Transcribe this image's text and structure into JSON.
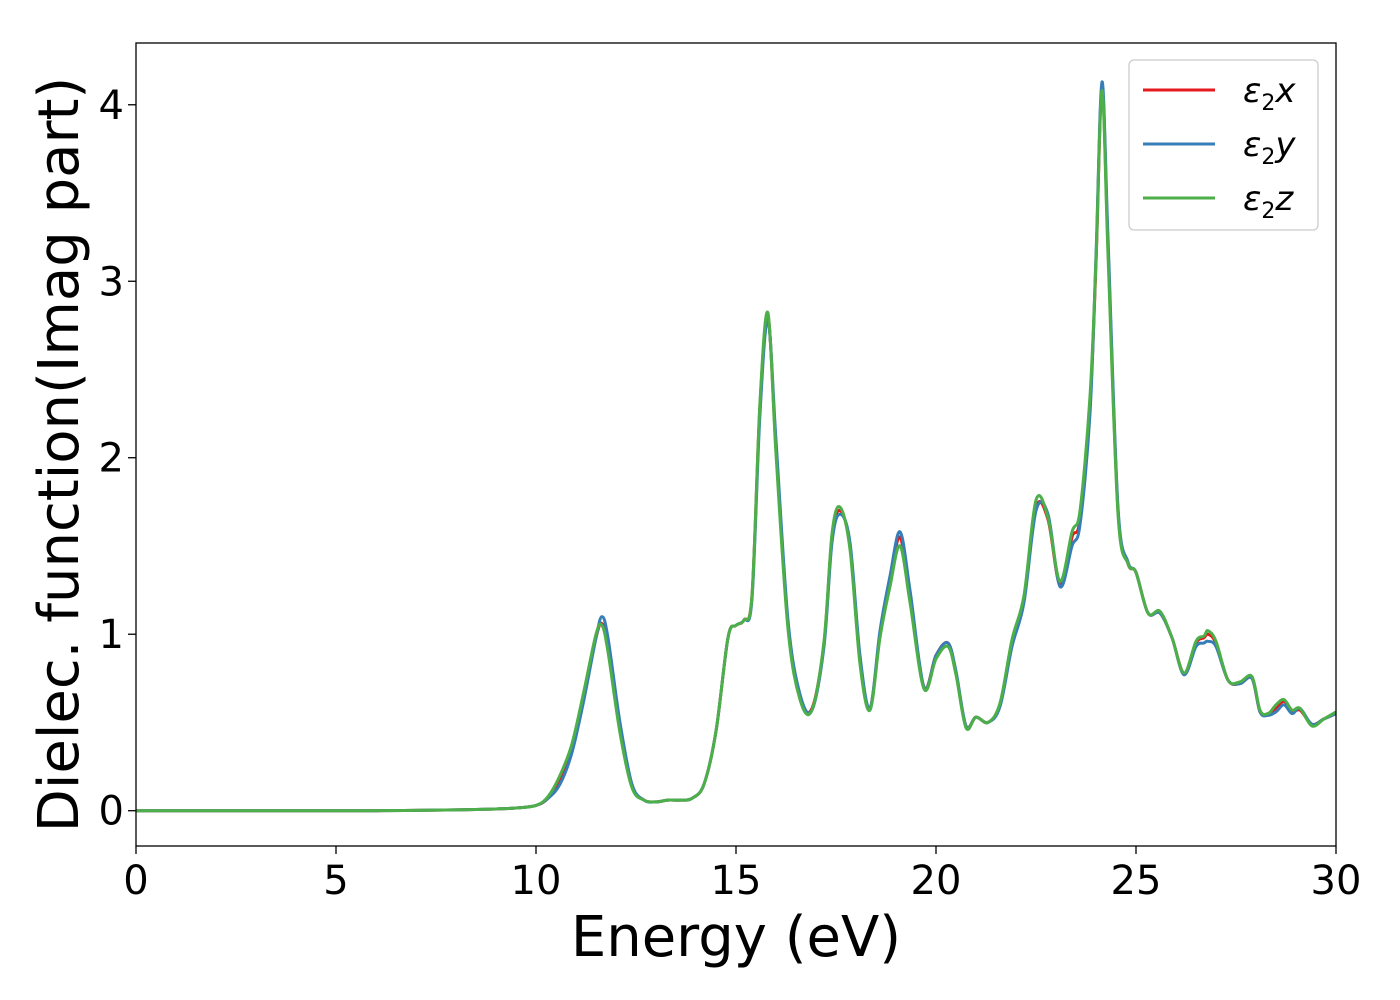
{
  "chart_data": {
    "type": "line",
    "xlabel": "Energy (eV)",
    "ylabel": "Dielec. function(Imag part)",
    "xlim": [
      0,
      30
    ],
    "ylim": [
      -0.2,
      4.35
    ],
    "xticks": [
      0,
      5,
      10,
      15,
      20,
      25,
      30
    ],
    "yticks": [
      0,
      1,
      2,
      3,
      4
    ],
    "xtick_labels": [
      "0",
      "5",
      "10",
      "15",
      "20",
      "25",
      "30"
    ],
    "ytick_labels": [
      "0",
      "1",
      "2",
      "3",
      "4"
    ],
    "grid": false,
    "legend_position": "top-right",
    "series": [
      {
        "name": "ε2x",
        "base": "ε",
        "sub": "2",
        "suffix": "x",
        "color": "#e41a1c",
        "x": [
          0,
          2,
          4,
          6,
          8,
          9,
          9.5,
          10,
          10.3,
          10.6,
          10.9,
          11.2,
          11.5,
          11.65,
          11.8,
          12.1,
          12.4,
          12.7,
          13,
          13.3,
          13.6,
          13.9,
          14.2,
          14.5,
          14.8,
          15,
          15.2,
          15.4,
          15.6,
          15.8,
          16,
          16.3,
          16.6,
          16.9,
          17.2,
          17.4,
          17.6,
          17.85,
          18.1,
          18.35,
          18.6,
          18.85,
          19.1,
          19.35,
          19.7,
          20,
          20.3,
          20.5,
          20.75,
          21,
          21.3,
          21.6,
          21.9,
          22.2,
          22.5,
          22.8,
          23.1,
          23.4,
          23.6,
          23.85,
          24,
          24.15,
          24.3,
          24.55,
          24.8,
          25,
          25.3,
          25.6,
          25.9,
          26.2,
          26.5,
          26.7,
          26.8,
          27,
          27.3,
          27.6,
          27.9,
          28.1,
          28.3,
          28.5,
          28.7,
          28.9,
          29.1,
          29.4,
          29.7,
          30
        ],
        "y": [
          0,
          0,
          0,
          0,
          0.005,
          0.01,
          0.015,
          0.03,
          0.07,
          0.17,
          0.35,
          0.65,
          0.98,
          1.06,
          0.92,
          0.45,
          0.14,
          0.06,
          0.05,
          0.06,
          0.06,
          0.07,
          0.15,
          0.45,
          0.98,
          1.05,
          1.08,
          1.22,
          2.3,
          2.8,
          2.05,
          1.05,
          0.64,
          0.58,
          0.95,
          1.55,
          1.7,
          1.5,
          0.85,
          0.58,
          1.0,
          1.3,
          1.55,
          1.2,
          0.7,
          0.88,
          0.95,
          0.78,
          0.48,
          0.53,
          0.5,
          0.6,
          0.95,
          1.2,
          1.72,
          1.65,
          1.28,
          1.55,
          1.65,
          2.3,
          3.1,
          4.1,
          3.2,
          1.7,
          1.4,
          1.35,
          1.12,
          1.12,
          0.98,
          0.78,
          0.95,
          0.98,
          1.0,
          0.95,
          0.74,
          0.72,
          0.75,
          0.56,
          0.55,
          0.58,
          0.62,
          0.56,
          0.57,
          0.49,
          0.52,
          0.55
        ]
      },
      {
        "name": "ε2y",
        "base": "ε",
        "sub": "2",
        "suffix": "y",
        "color": "#377eb8",
        "x": [
          0,
          2,
          4,
          6,
          8,
          9,
          9.5,
          10,
          10.3,
          10.6,
          10.9,
          11.2,
          11.5,
          11.65,
          11.8,
          12.1,
          12.4,
          12.7,
          13,
          13.3,
          13.6,
          13.9,
          14.2,
          14.5,
          14.8,
          15,
          15.2,
          15.4,
          15.6,
          15.8,
          16,
          16.3,
          16.6,
          16.9,
          17.2,
          17.4,
          17.6,
          17.85,
          18.1,
          18.35,
          18.6,
          18.85,
          19.1,
          19.35,
          19.7,
          20,
          20.3,
          20.5,
          20.75,
          21,
          21.3,
          21.6,
          21.9,
          22.2,
          22.5,
          22.8,
          23.1,
          23.4,
          23.6,
          23.85,
          24,
          24.15,
          24.3,
          24.55,
          24.8,
          25,
          25.3,
          25.6,
          25.9,
          26.2,
          26.5,
          26.7,
          26.8,
          27,
          27.3,
          27.6,
          27.9,
          28.1,
          28.3,
          28.5,
          28.7,
          28.9,
          29.1,
          29.4,
          29.7,
          30
        ],
        "y": [
          0,
          0,
          0,
          0,
          0.005,
          0.01,
          0.015,
          0.03,
          0.07,
          0.15,
          0.33,
          0.63,
          0.98,
          1.1,
          0.98,
          0.5,
          0.15,
          0.06,
          0.05,
          0.06,
          0.06,
          0.07,
          0.15,
          0.45,
          0.98,
          1.05,
          1.08,
          1.2,
          2.25,
          2.78,
          2.1,
          1.08,
          0.66,
          0.57,
          0.93,
          1.52,
          1.68,
          1.52,
          0.88,
          0.58,
          1.02,
          1.33,
          1.58,
          1.25,
          0.7,
          0.88,
          0.95,
          0.79,
          0.48,
          0.53,
          0.5,
          0.59,
          0.93,
          1.18,
          1.7,
          1.68,
          1.27,
          1.5,
          1.62,
          2.25,
          3.15,
          4.13,
          3.25,
          1.72,
          1.41,
          1.35,
          1.12,
          1.12,
          0.98,
          0.77,
          0.93,
          0.95,
          0.96,
          0.93,
          0.74,
          0.72,
          0.75,
          0.56,
          0.54,
          0.56,
          0.6,
          0.55,
          0.58,
          0.49,
          0.52,
          0.55
        ]
      },
      {
        "name": "ε2z",
        "base": "ε",
        "sub": "2",
        "suffix": "z",
        "color": "#4daf4a",
        "x": [
          0,
          2,
          4,
          6,
          8,
          9,
          9.5,
          10,
          10.3,
          10.6,
          10.9,
          11.2,
          11.5,
          11.65,
          11.8,
          12.1,
          12.4,
          12.7,
          13,
          13.3,
          13.6,
          13.9,
          14.2,
          14.5,
          14.8,
          15,
          15.2,
          15.4,
          15.6,
          15.8,
          16,
          16.3,
          16.6,
          16.9,
          17.2,
          17.4,
          17.6,
          17.85,
          18.1,
          18.35,
          18.6,
          18.85,
          19.1,
          19.35,
          19.7,
          20,
          20.3,
          20.5,
          20.75,
          21,
          21.3,
          21.6,
          21.9,
          22.2,
          22.5,
          22.8,
          23.1,
          23.4,
          23.6,
          23.85,
          24,
          24.15,
          24.3,
          24.55,
          24.8,
          25,
          25.3,
          25.6,
          25.9,
          26.2,
          26.5,
          26.7,
          26.8,
          27,
          27.3,
          27.6,
          27.9,
          28.1,
          28.3,
          28.5,
          28.7,
          28.9,
          29.1,
          29.4,
          29.7,
          30
        ],
        "y": [
          0,
          0,
          0,
          0,
          0.005,
          0.01,
          0.015,
          0.03,
          0.08,
          0.2,
          0.38,
          0.68,
          1.0,
          1.05,
          0.9,
          0.44,
          0.13,
          0.06,
          0.05,
          0.06,
          0.06,
          0.07,
          0.15,
          0.45,
          0.98,
          1.05,
          1.08,
          1.22,
          2.32,
          2.82,
          2.02,
          1.03,
          0.63,
          0.57,
          0.96,
          1.57,
          1.72,
          1.48,
          0.83,
          0.57,
          0.98,
          1.27,
          1.5,
          1.18,
          0.69,
          0.86,
          0.93,
          0.77,
          0.47,
          0.53,
          0.5,
          0.61,
          0.97,
          1.22,
          1.76,
          1.66,
          1.3,
          1.58,
          1.7,
          2.35,
          3.12,
          4.08,
          3.15,
          1.68,
          1.4,
          1.35,
          1.12,
          1.13,
          0.98,
          0.78,
          0.96,
          0.99,
          1.02,
          0.96,
          0.74,
          0.73,
          0.76,
          0.57,
          0.55,
          0.6,
          0.63,
          0.57,
          0.58,
          0.48,
          0.52,
          0.56
        ]
      }
    ]
  }
}
